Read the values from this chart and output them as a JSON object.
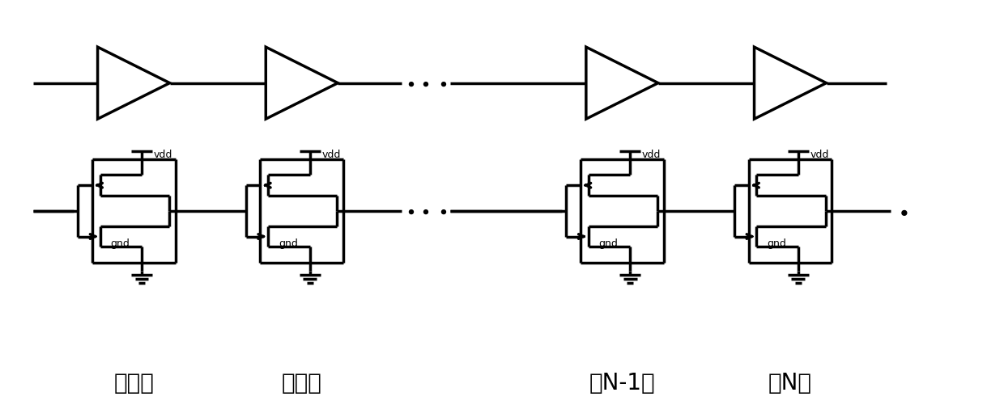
{
  "bg_color": "#ffffff",
  "line_color": "#000000",
  "line_width": 2.5,
  "fig_width": 12.4,
  "fig_height": 5.02,
  "labels": {
    "stage1": "第一级",
    "stage2": "第二级",
    "stageN1": "第N-1级",
    "stageN": "第N级",
    "vdd": "vdd",
    "gnd": "gnd"
  },
  "label_fontsize": 20,
  "small_fontsize": 9,
  "dots_fontsize": 28
}
